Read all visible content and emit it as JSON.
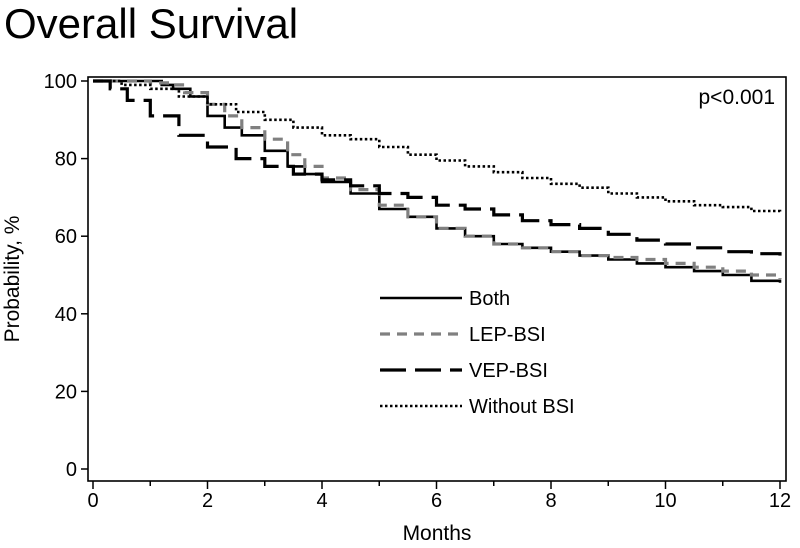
{
  "chart_data": {
    "type": "line",
    "title": "Overall Survival",
    "xlabel": "Months",
    "ylabel": "Probability, %",
    "xlim": [
      0,
      12
    ],
    "ylim": [
      0,
      100
    ],
    "xticks": [
      0,
      2,
      4,
      6,
      8,
      10,
      12
    ],
    "yticks": [
      0,
      20,
      40,
      60,
      80,
      100
    ],
    "annotation": "p<0.001",
    "grid": false,
    "legend_position": "center",
    "series": [
      {
        "name": "Both",
        "color": "#000000",
        "style": "solid",
        "points": [
          [
            0,
            100
          ],
          [
            0.3,
            100
          ],
          [
            0.6,
            100
          ],
          [
            1.0,
            100
          ],
          [
            1.2,
            99
          ],
          [
            1.4,
            98
          ],
          [
            1.7,
            96
          ],
          [
            2.0,
            91
          ],
          [
            2.3,
            88
          ],
          [
            2.6,
            86
          ],
          [
            3.0,
            82
          ],
          [
            3.4,
            78
          ],
          [
            3.7,
            76
          ],
          [
            4.0,
            74
          ],
          [
            4.5,
            71
          ],
          [
            5.0,
            67
          ],
          [
            5.5,
            65
          ],
          [
            6.0,
            62
          ],
          [
            6.5,
            60
          ],
          [
            7.0,
            58
          ],
          [
            7.5,
            57
          ],
          [
            8.0,
            56
          ],
          [
            8.5,
            55
          ],
          [
            9.0,
            54
          ],
          [
            9.5,
            53
          ],
          [
            10.0,
            52
          ],
          [
            10.5,
            51
          ],
          [
            11.0,
            50
          ],
          [
            11.5,
            48.5
          ],
          [
            12.0,
            48
          ]
        ]
      },
      {
        "name": "LEP-BSI",
        "color": "#808080",
        "style": "dashed",
        "points": [
          [
            0,
            100
          ],
          [
            0.5,
            100
          ],
          [
            1.0,
            99.5
          ],
          [
            1.3,
            99
          ],
          [
            1.6,
            97
          ],
          [
            2.0,
            94
          ],
          [
            2.3,
            91
          ],
          [
            2.6,
            88
          ],
          [
            3.0,
            85
          ],
          [
            3.4,
            81
          ],
          [
            3.7,
            78
          ],
          [
            4.0,
            75
          ],
          [
            4.5,
            72
          ],
          [
            5.0,
            68
          ],
          [
            5.5,
            65
          ],
          [
            6.0,
            62
          ],
          [
            6.5,
            60
          ],
          [
            7.0,
            58
          ],
          [
            7.5,
            57
          ],
          [
            8.0,
            56
          ],
          [
            8.5,
            55
          ],
          [
            9.0,
            54.5
          ],
          [
            9.5,
            54
          ],
          [
            10.0,
            53
          ],
          [
            10.5,
            52
          ],
          [
            11.0,
            51
          ],
          [
            11.5,
            50
          ],
          [
            12.0,
            49
          ]
        ]
      },
      {
        "name": "VEP-BSI",
        "color": "#000000",
        "style": "longdash",
        "points": [
          [
            0,
            100
          ],
          [
            0.3,
            98
          ],
          [
            0.6,
            95
          ],
          [
            1.0,
            91
          ],
          [
            1.5,
            86
          ],
          [
            2.0,
            83
          ],
          [
            2.5,
            80
          ],
          [
            3.0,
            78
          ],
          [
            3.5,
            76
          ],
          [
            4.0,
            74.5
          ],
          [
            4.5,
            73
          ],
          [
            5.0,
            71
          ],
          [
            5.5,
            70
          ],
          [
            6.0,
            68
          ],
          [
            6.5,
            67
          ],
          [
            7.0,
            65.5
          ],
          [
            7.5,
            64
          ],
          [
            8.0,
            63
          ],
          [
            8.5,
            62
          ],
          [
            9.0,
            60.5
          ],
          [
            9.5,
            59
          ],
          [
            10.0,
            58
          ],
          [
            10.5,
            57
          ],
          [
            11.0,
            56
          ],
          [
            11.5,
            55.5
          ],
          [
            12.0,
            55
          ]
        ]
      },
      {
        "name": "Without BSI",
        "color": "#000000",
        "style": "dotted",
        "points": [
          [
            0,
            100
          ],
          [
            0.5,
            99
          ],
          [
            1.0,
            98
          ],
          [
            1.5,
            96
          ],
          [
            2.0,
            94
          ],
          [
            2.5,
            92
          ],
          [
            3.0,
            90
          ],
          [
            3.5,
            88
          ],
          [
            4.0,
            86
          ],
          [
            4.5,
            85
          ],
          [
            5.0,
            83
          ],
          [
            5.5,
            81
          ],
          [
            6.0,
            79.5
          ],
          [
            6.5,
            78
          ],
          [
            7.0,
            76.5
          ],
          [
            7.5,
            75
          ],
          [
            8.0,
            73.5
          ],
          [
            8.5,
            72.5
          ],
          [
            9.0,
            71
          ],
          [
            9.5,
            70
          ],
          [
            10.0,
            69
          ],
          [
            10.5,
            68
          ],
          [
            11.0,
            67.5
          ],
          [
            11.5,
            66.5
          ],
          [
            12.0,
            66
          ]
        ]
      }
    ]
  }
}
